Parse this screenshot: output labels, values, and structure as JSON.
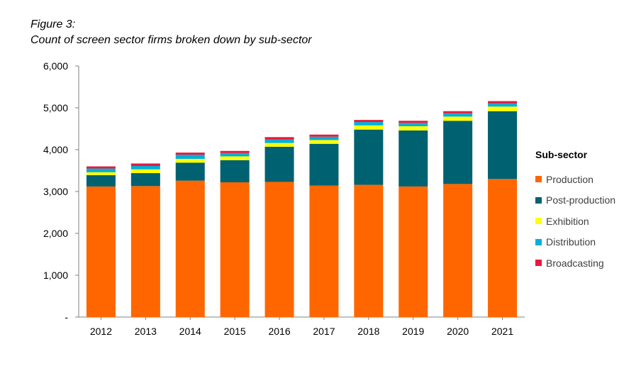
{
  "figure": {
    "label": "Figure 3:",
    "title": "Count of screen sector firms broken down by sub-sector"
  },
  "legend": {
    "title": "Sub-sector"
  },
  "chart_data": {
    "type": "bar",
    "stacked": true,
    "title": "Count of screen sector firms broken down by sub-sector",
    "xlabel": "",
    "ylabel": "",
    "categories": [
      "2012",
      "2013",
      "2014",
      "2015",
      "2016",
      "2017",
      "2018",
      "2019",
      "2020",
      "2021"
    ],
    "ylim": [
      0,
      6000
    ],
    "yticks": [
      0,
      1000,
      2000,
      3000,
      4000,
      5000,
      6000
    ],
    "ytick_labels": [
      "-",
      "1,000",
      "2,000",
      "3,000",
      "4,000",
      "5,000",
      "6,000"
    ],
    "grid": false,
    "legend_position": "right",
    "series": [
      {
        "name": "Production",
        "color": "#FF6600",
        "values": [
          3120,
          3130,
          3260,
          3220,
          3230,
          3140,
          3160,
          3120,
          3180,
          3300
        ]
      },
      {
        "name": "Post-production",
        "color": "#006170",
        "values": [
          270,
          310,
          430,
          530,
          840,
          1000,
          1320,
          1340,
          1510,
          1620
        ]
      },
      {
        "name": "Exhibition",
        "color": "#FFFF00",
        "values": [
          70,
          90,
          90,
          90,
          90,
          90,
          100,
          100,
          100,
          110
        ]
      },
      {
        "name": "Distribution",
        "color": "#00B0D8",
        "values": [
          90,
          80,
          100,
          80,
          80,
          80,
          80,
          80,
          80,
          80
        ]
      },
      {
        "name": "Broadcasting",
        "color": "#E8193C",
        "values": [
          50,
          60,
          50,
          50,
          60,
          50,
          50,
          50,
          50,
          50
        ]
      }
    ]
  }
}
